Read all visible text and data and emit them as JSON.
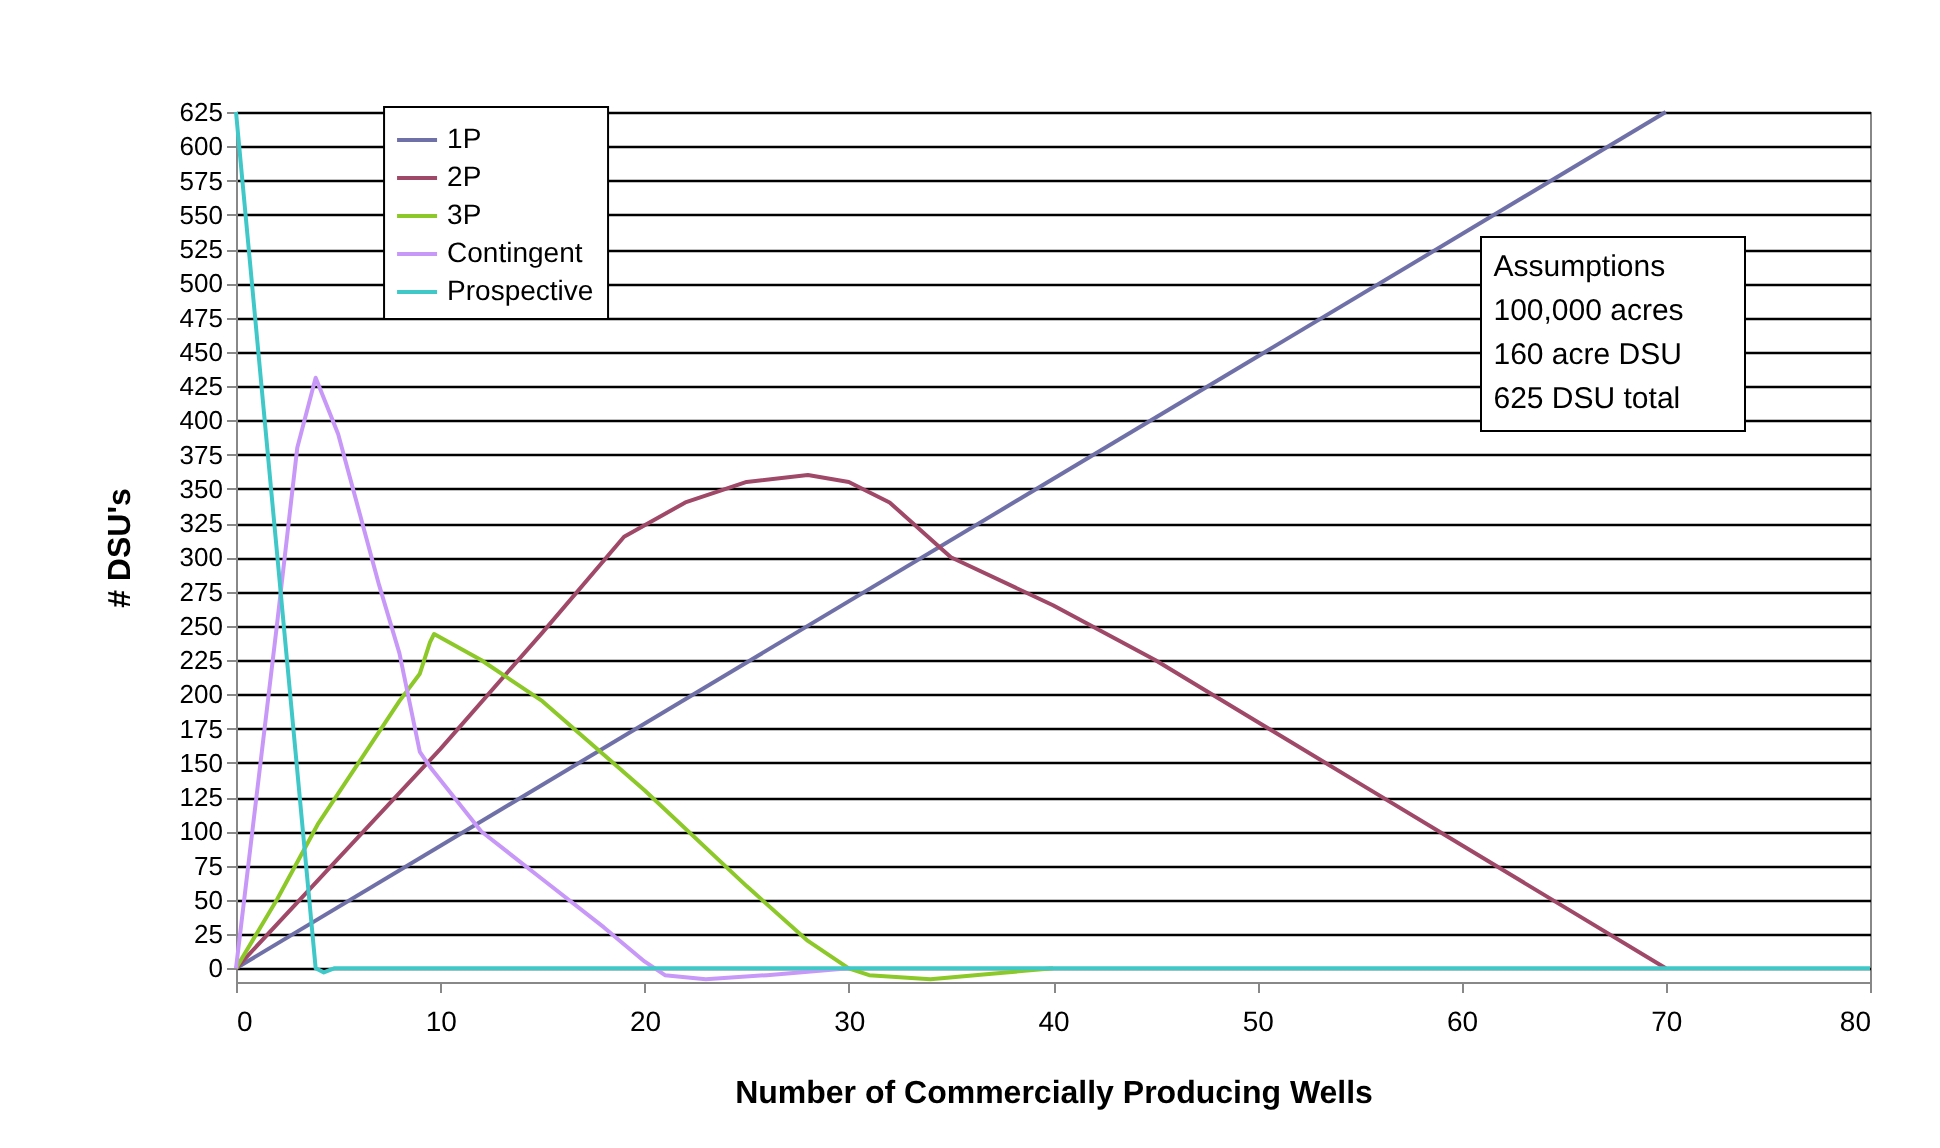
{
  "chart_data": {
    "type": "line",
    "xlabel": "Number of Commercially Producing Wells",
    "ylabel": "# DSU's",
    "xlim": [
      0,
      80
    ],
    "xticks": [
      0,
      10,
      20,
      30,
      40,
      50,
      60,
      70,
      80
    ],
    "ylim": [
      -10,
      625
    ],
    "yticks": [
      0,
      25,
      50,
      75,
      100,
      125,
      150,
      175,
      200,
      225,
      250,
      275,
      300,
      325,
      350,
      375,
      400,
      425,
      450,
      475,
      500,
      525,
      550,
      575,
      600,
      625
    ],
    "grid": "y",
    "legend": "top left",
    "line_style": "solid",
    "marker": "none",
    "annotations": [
      "Assumptions",
      "100,000 acres",
      "160 acre DSU",
      "625 DSU total"
    ],
    "series": [
      {
        "name": "1P",
        "color": "#7070a8",
        "x": [
          0,
          70
        ],
        "values": [
          0,
          625
        ]
      },
      {
        "name": "2P",
        "color": "#a04868",
        "x": [
          0,
          5,
          10,
          15,
          19,
          22,
          25,
          28,
          30,
          32,
          35,
          40,
          45,
          50,
          55,
          60,
          65,
          70
        ],
        "values": [
          0,
          80,
          160,
          245,
          315,
          340,
          355,
          360,
          355,
          340,
          300,
          265,
          225,
          180,
          135,
          90,
          45,
          0
        ]
      },
      {
        "name": "3P",
        "color": "#8cc828",
        "x": [
          0,
          2,
          4,
          6,
          8,
          9,
          9.5,
          9.7,
          12,
          15,
          20,
          25,
          28,
          30,
          31,
          34,
          37,
          40
        ],
        "values": [
          0,
          50,
          105,
          150,
          195,
          215,
          238,
          244,
          225,
          195,
          130,
          60,
          20,
          0,
          -5,
          -8,
          -4,
          0
        ]
      },
      {
        "name": "Contingent",
        "color": "#c898f8",
        "x": [
          0,
          2,
          3,
          3.9,
          5,
          7,
          8,
          9,
          9.5,
          12,
          15,
          18,
          20,
          21,
          23,
          26,
          30
        ],
        "values": [
          0,
          250,
          380,
          431,
          390,
          280,
          230,
          158,
          147,
          100,
          65,
          30,
          5,
          -5,
          -8,
          -5,
          0
        ]
      },
      {
        "name": "Prospective",
        "color": "#40c8c8",
        "x": [
          0,
          3.9,
          4.3,
          4.8,
          80
        ],
        "values": [
          625,
          0,
          -3,
          0,
          0
        ]
      }
    ]
  }
}
